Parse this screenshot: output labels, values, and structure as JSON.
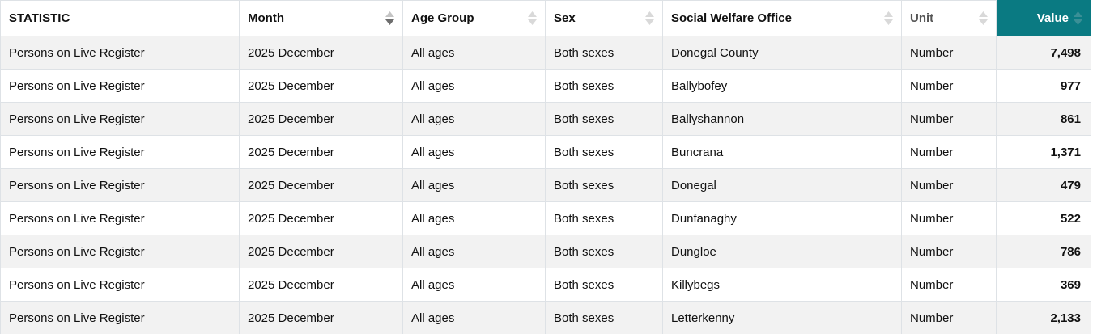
{
  "colors": {
    "accent_teal": "#0a7a82",
    "teal_icon": "#3a8f96",
    "row_stripe": "#f2f2f2",
    "border": "#dee2e6",
    "unit_header_text": "#555555"
  },
  "icons": {
    "sort": "diamond-up-down-sort-icon"
  },
  "header": {
    "columns": [
      {
        "key": "statistic",
        "label": "STATISTIC",
        "sort": "none"
      },
      {
        "key": "month",
        "label": "Month",
        "sort": "desc"
      },
      {
        "key": "age-group",
        "label": "Age Group",
        "sort": "unsorted"
      },
      {
        "key": "sex",
        "label": "Sex",
        "sort": "unsorted"
      },
      {
        "key": "social-welfare-office",
        "label": "Social Welfare Office",
        "sort": "unsorted"
      },
      {
        "key": "unit",
        "label": "Unit",
        "sort": "unsorted"
      },
      {
        "key": "value",
        "label": "Value",
        "sort": "unsorted"
      }
    ]
  },
  "rows": [
    [
      "Persons on Live Register",
      "2025 December",
      "All ages",
      "Both sexes",
      "Donegal County",
      "Number",
      "7,498"
    ],
    [
      "Persons on Live Register",
      "2025 December",
      "All ages",
      "Both sexes",
      "Ballybofey",
      "Number",
      "977"
    ],
    [
      "Persons on Live Register",
      "2025 December",
      "All ages",
      "Both sexes",
      "Ballyshannon",
      "Number",
      "861"
    ],
    [
      "Persons on Live Register",
      "2025 December",
      "All ages",
      "Both sexes",
      "Buncrana",
      "Number",
      "1,371"
    ],
    [
      "Persons on Live Register",
      "2025 December",
      "All ages",
      "Both sexes",
      "Donegal",
      "Number",
      "479"
    ],
    [
      "Persons on Live Register",
      "2025 December",
      "All ages",
      "Both sexes",
      "Dunfanaghy",
      "Number",
      "522"
    ],
    [
      "Persons on Live Register",
      "2025 December",
      "All ages",
      "Both sexes",
      "Dungloe",
      "Number",
      "786"
    ],
    [
      "Persons on Live Register",
      "2025 December",
      "All ages",
      "Both sexes",
      "Killybegs",
      "Number",
      "369"
    ],
    [
      "Persons on Live Register",
      "2025 December",
      "All ages",
      "Both sexes",
      "Letterkenny",
      "Number",
      "2,133"
    ]
  ]
}
